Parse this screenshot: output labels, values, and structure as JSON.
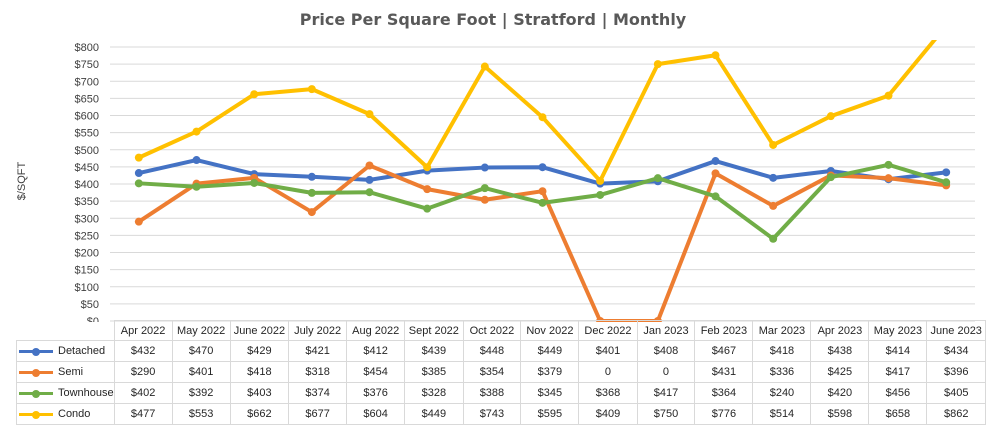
{
  "chart_data": {
    "type": "line",
    "title": "Price Per Square Foot | Stratford | Monthly",
    "ylabel": "$/SQFT",
    "xlabel": "",
    "ylim": [
      0,
      800
    ],
    "yticks": [
      "$0",
      "$50",
      "$100",
      "$150",
      "$200",
      "$250",
      "$300",
      "$350",
      "$400",
      "$450",
      "$500",
      "$550",
      "$600",
      "$650",
      "$700",
      "$750",
      "$800"
    ],
    "ytick_values": [
      0,
      50,
      100,
      150,
      200,
      250,
      300,
      350,
      400,
      450,
      500,
      550,
      600,
      650,
      700,
      750,
      800
    ],
    "grid": true,
    "legend": "data-table",
    "categories": [
      "Apr 2022",
      "May 2022",
      "June 2022",
      "July 2022",
      "Aug 2022",
      "Sept 2022",
      "Oct 2022",
      "Nov 2022",
      "Dec 2022",
      "Jan 2023",
      "Feb 2023",
      "Mar 2023",
      "Apr 2023",
      "May 2023",
      "June 2023"
    ],
    "series": [
      {
        "name": "Detached",
        "color": "#4472c4",
        "values": [
          432,
          470,
          429,
          421,
          412,
          439,
          448,
          449,
          401,
          408,
          467,
          418,
          438,
          414,
          434
        ],
        "labels": [
          "$432",
          "$470",
          "$429",
          "$421",
          "$412",
          "$439",
          "$448",
          "$449",
          "$401",
          "$408",
          "$467",
          "$418",
          "$438",
          "$414",
          "$434"
        ]
      },
      {
        "name": "Semi",
        "color": "#ed7d31",
        "values": [
          290,
          401,
          418,
          318,
          454,
          385,
          354,
          379,
          0,
          0,
          431,
          336,
          425,
          417,
          396
        ],
        "labels": [
          "$290",
          "$401",
          "$418",
          "$318",
          "$454",
          "$385",
          "$354",
          "$379",
          "0",
          "0",
          "$431",
          "$336",
          "$425",
          "$417",
          "$396"
        ]
      },
      {
        "name": "Townhouse",
        "color": "#70ad47",
        "values": [
          402,
          392,
          403,
          374,
          376,
          328,
          388,
          345,
          368,
          417,
          364,
          240,
          420,
          456,
          405
        ],
        "labels": [
          "$402",
          "$392",
          "$403",
          "$374",
          "$376",
          "$328",
          "$388",
          "$345",
          "$368",
          "$417",
          "$364",
          "$240",
          "$420",
          "$456",
          "$405"
        ]
      },
      {
        "name": "Condo",
        "color": "#ffc000",
        "values": [
          477,
          553,
          662,
          677,
          604,
          449,
          743,
          595,
          409,
          750,
          776,
          514,
          598,
          658,
          862
        ],
        "labels": [
          "$477",
          "$553",
          "$662",
          "$677",
          "$604",
          "$449",
          "$743",
          "$595",
          "$409",
          "$750",
          "$776",
          "$514",
          "$598",
          "$658",
          "$862"
        ]
      }
    ]
  }
}
